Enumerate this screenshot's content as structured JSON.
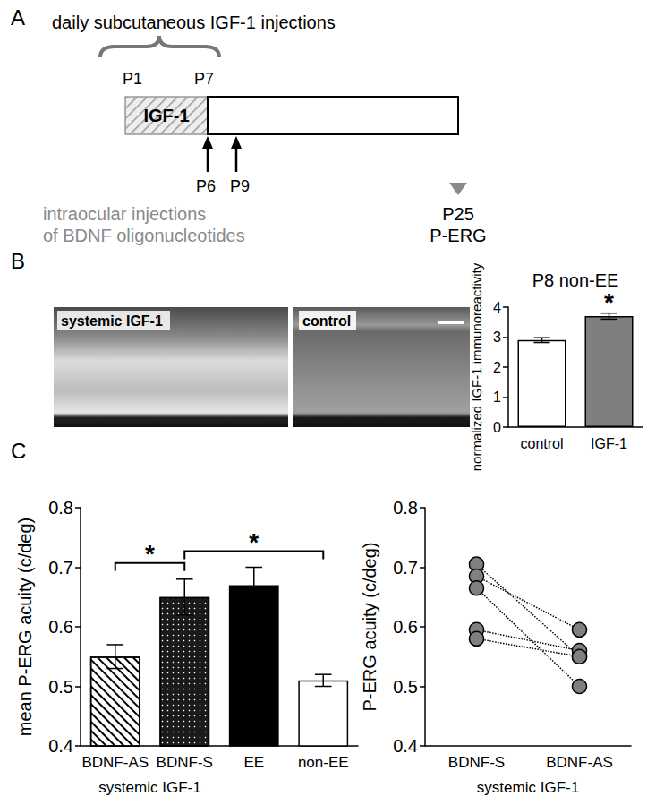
{
  "panel_labels": [
    "A",
    "B",
    "C"
  ],
  "panel_A": {
    "header": "daily subcutaneous IGF-1 injections",
    "start": "P1",
    "end": "P7",
    "treatment": "IGF-1",
    "injection_days": [
      "P6",
      "P9"
    ],
    "injection_text": [
      "intraocular injections",
      "of BDNF oligonucleotides"
    ],
    "endpoint": [
      "P25",
      "P-ERG"
    ]
  },
  "panel_B_images": [
    "systemic IGF-1",
    "control"
  ],
  "chart_data": [
    {
      "type": "bar",
      "title": "P8 non-EE",
      "y_label": "normalized IGF-1 immunoreactivity",
      "categories": [
        "control",
        "IGF-1"
      ],
      "values": [
        2.9,
        3.7
      ],
      "errors": [
        0.08,
        0.1
      ],
      "colors": [
        "#ffffff",
        "#7f7f7f"
      ],
      "ylim": [
        0,
        4
      ],
      "yticks": [
        0,
        1,
        2,
        3,
        4
      ],
      "grid": false,
      "annotations": [
        {
          "category": "IGF-1",
          "text": "*"
        }
      ]
    },
    {
      "type": "bar",
      "y_label": "mean P-ERG acuity (c/deg)",
      "categories": [
        "BDNF-AS",
        "BDNF-S",
        "EE",
        "non-EE"
      ],
      "values": [
        0.55,
        0.65,
        0.67,
        0.51
      ],
      "errors": [
        0.02,
        0.03,
        0.03,
        0.01
      ],
      "colors": [
        "#ffffff",
        "#1a1a1a",
        "#000000",
        "#ffffff"
      ],
      "ylim": [
        0.4,
        0.8
      ],
      "yticks": [
        0.4,
        0.5,
        0.6,
        0.7,
        0.8
      ],
      "grid": false,
      "group_label": {
        "text": "systemic IGF-1",
        "categories": [
          "BDNF-AS",
          "BDNF-S"
        ]
      },
      "comparisons": [
        {
          "categories": [
            "BDNF-AS",
            "BDNF-S"
          ],
          "text": "*"
        },
        {
          "categories": [
            "BDNF-S",
            "non-EE"
          ],
          "text": "*"
        }
      ]
    },
    {
      "type": "line",
      "y_label": "P-ERG acuity (c/deg)",
      "categories": [
        "BDNF-S",
        "BDNF-AS"
      ],
      "series": [
        {
          "values": [
            0.705,
            0.55
          ]
        },
        {
          "values": [
            0.685,
            0.595
          ]
        },
        {
          "values": [
            0.665,
            0.5
          ]
        },
        {
          "values": [
            0.595,
            0.56
          ]
        },
        {
          "values": [
            0.58,
            0.55
          ]
        }
      ],
      "color": "#808080",
      "marker": "circle",
      "line_style": "dotted",
      "ylim": [
        0.4,
        0.8
      ],
      "yticks": [
        0.4,
        0.5,
        0.6,
        0.7,
        0.8
      ],
      "grid": false,
      "group_label": {
        "text": "systemic IGF-1",
        "categories": [
          "BDNF-S",
          "BDNF-AS"
        ]
      }
    }
  ]
}
